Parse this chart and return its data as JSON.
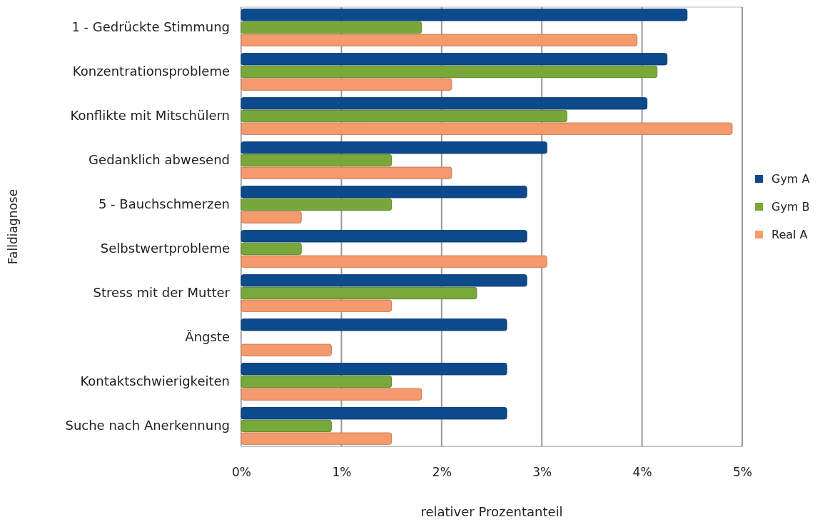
{
  "chart_data": {
    "type": "bar",
    "orientation": "horizontal",
    "xlabel": "relativer Prozentanteil",
    "ylabel": "Falldiagnose",
    "categories": [
      "1 - Gedrückte Stimmung",
      "Konzentrationsprobleme",
      "Konflikte mit Mitschülern",
      "Gedanklich abwesend",
      "5 - Bauchschmerzen",
      "Selbstwertprobleme",
      "Stress mit der Mutter",
      "Ängste",
      "Kontaktschwierigkeiten",
      "Suche nach Anerkennung"
    ],
    "series": [
      {
        "name": "Gym A",
        "color": "#0d4a8c",
        "values": [
          4.45,
          4.25,
          4.05,
          3.05,
          2.85,
          2.85,
          2.85,
          2.65,
          2.65,
          2.65
        ]
      },
      {
        "name": "Gym B",
        "color": "#78a83a",
        "values": [
          1.8,
          4.15,
          3.25,
          1.5,
          1.5,
          0.6,
          2.35,
          null,
          1.5,
          0.9
        ]
      },
      {
        "name": "Real A",
        "color": "#f59a6c",
        "values": [
          3.95,
          2.1,
          4.9,
          2.1,
          0.6,
          3.05,
          1.5,
          0.9,
          1.8,
          1.5
        ]
      }
    ],
    "xlim": [
      0,
      5
    ],
    "xticks": [
      {
        "value": 0,
        "label": "0%"
      },
      {
        "value": 1,
        "label": "1%"
      },
      {
        "value": 2,
        "label": "2%"
      },
      {
        "value": 3,
        "label": "3%"
      },
      {
        "value": 4,
        "label": "4%"
      },
      {
        "value": 5,
        "label": "5%"
      }
    ],
    "grid": "x",
    "legend": "right"
  }
}
